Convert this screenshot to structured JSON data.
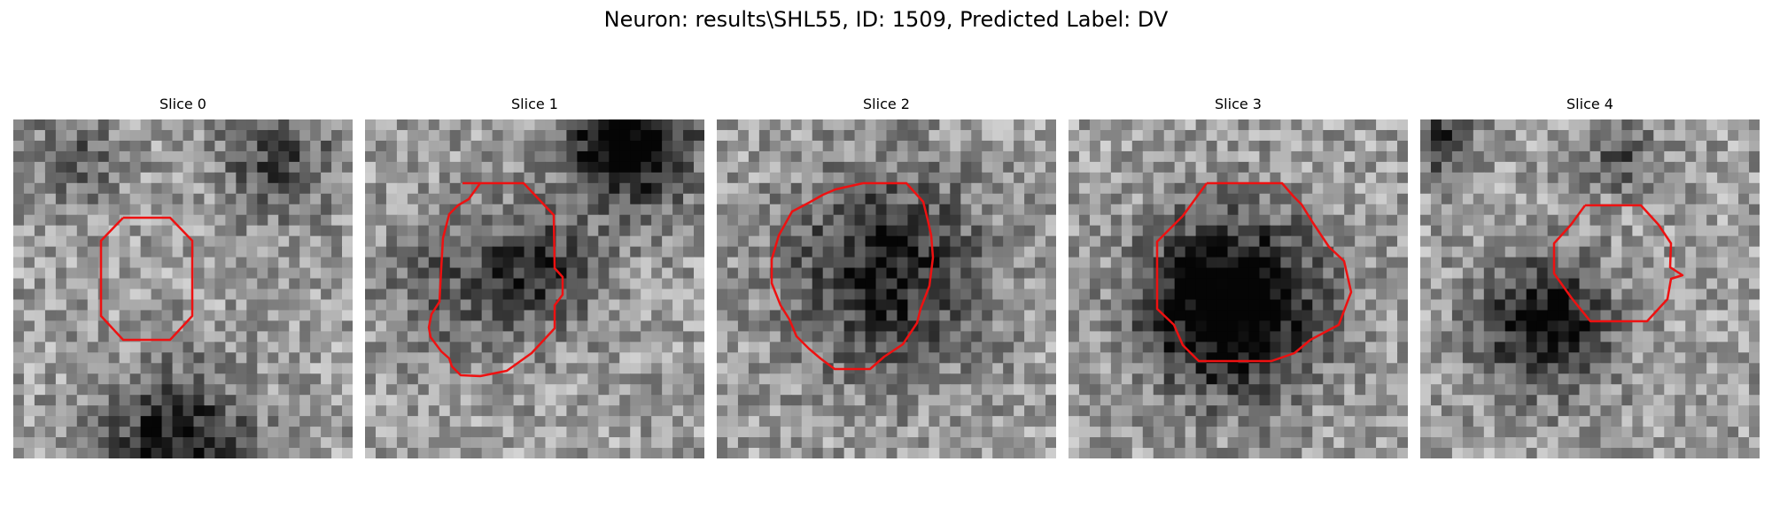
{
  "figure": {
    "title": "Neuron: results\\SHL55, ID: 1509, Predicted Label: DV"
  },
  "panels": [
    {
      "title": "Slice 0"
    },
    {
      "title": "Slice 1"
    },
    {
      "title": "Slice 2"
    },
    {
      "title": "Slice 3"
    },
    {
      "title": "Slice 4"
    }
  ],
  "colors": {
    "contour": "#ee1111",
    "background": "#ffffff"
  }
}
